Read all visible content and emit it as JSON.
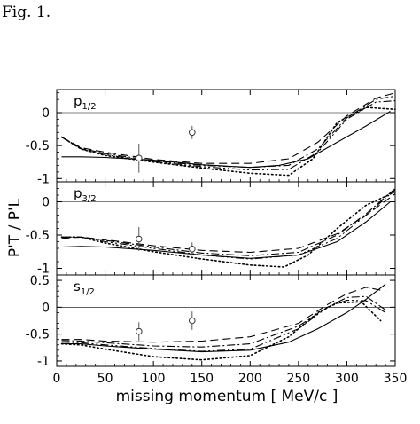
{
  "figure_label": "Fig. 1.",
  "chart_data": {
    "type": "line",
    "xlabel": "missing momentum [ MeV/c ]",
    "ylabel": "P'T / P'L",
    "xlim": [
      0,
      350
    ],
    "x_ticks": [
      0,
      50,
      100,
      150,
      200,
      250,
      300,
      350
    ],
    "panels": [
      {
        "name": "p1/2",
        "label_main": "p",
        "label_sub": "1/2",
        "ylim": [
          -1.05,
          0.35
        ],
        "y_ticks": [
          {
            "v": 0,
            "t": "0"
          },
          {
            "v": -0.5,
            "t": "-0.5"
          },
          {
            "v": -1,
            "t": "-1"
          }
        ],
        "series": [
          {
            "style": "solid",
            "x": [
              5,
              25,
              50,
              100,
              150,
              200,
              230,
              260,
              290,
              320,
              345
            ],
            "y": [
              -0.67,
              -0.67,
              -0.68,
              -0.72,
              -0.79,
              -0.83,
              -0.8,
              -0.7,
              -0.45,
              -0.2,
              0.02
            ]
          },
          {
            "style": "dashed",
            "x": [
              5,
              25,
              50,
              100,
              150,
              200,
              240,
              270,
              300,
              330,
              350
            ],
            "y": [
              -0.37,
              -0.53,
              -0.6,
              -0.71,
              -0.77,
              -0.77,
              -0.7,
              -0.45,
              -0.05,
              0.22,
              0.3
            ]
          },
          {
            "style": "dashdot",
            "x": [
              5,
              25,
              50,
              100,
              150,
              200,
              240,
              270,
              300,
              330,
              350
            ],
            "y": [
              -0.37,
              -0.54,
              -0.62,
              -0.73,
              -0.8,
              -0.83,
              -0.8,
              -0.55,
              -0.08,
              0.2,
              0.25
            ]
          },
          {
            "style": "dashdotdot",
            "x": [
              5,
              25,
              50,
              100,
              150,
              200,
              240,
              270,
              300,
              330,
              350
            ],
            "y": [
              -0.37,
              -0.55,
              -0.64,
              -0.74,
              -0.82,
              -0.87,
              -0.86,
              -0.6,
              -0.1,
              0.16,
              0.18
            ]
          },
          {
            "style": "dotted",
            "x": [
              5,
              25,
              50,
              100,
              150,
              200,
              240,
              265,
              290,
              320,
              350
            ],
            "y": [
              -0.37,
              -0.55,
              -0.65,
              -0.75,
              -0.84,
              -0.92,
              -0.95,
              -0.7,
              -0.15,
              0.08,
              0.05
            ]
          }
        ],
        "points": [
          {
            "x": 85,
            "y": -0.69,
            "err": 0.22
          },
          {
            "x": 140,
            "y": -0.3,
            "err": 0.1
          }
        ]
      },
      {
        "name": "p3/2",
        "label_main": "p",
        "label_sub": "3/2",
        "ylim": [
          -1.1,
          0.3
        ],
        "y_ticks": [
          {
            "v": 0,
            "t": "0"
          },
          {
            "v": -0.5,
            "t": "-0.5"
          },
          {
            "v": -1,
            "t": "-1"
          }
        ],
        "series": [
          {
            "style": "solid",
            "x": [
              5,
              25,
              50,
              100,
              150,
              200,
              250,
              290,
              320,
              345
            ],
            "y": [
              -0.68,
              -0.67,
              -0.68,
              -0.73,
              -0.8,
              -0.85,
              -0.8,
              -0.6,
              -0.3,
              0.0
            ]
          },
          {
            "style": "dashed",
            "x": [
              5,
              25,
              50,
              100,
              150,
              200,
              250,
              290,
              320,
              350
            ],
            "y": [
              -0.55,
              -0.53,
              -0.57,
              -0.66,
              -0.73,
              -0.76,
              -0.7,
              -0.48,
              -0.2,
              0.12
            ]
          },
          {
            "style": "dashdot",
            "x": [
              5,
              25,
              50,
              100,
              150,
              200,
              250,
              290,
              320,
              350
            ],
            "y": [
              -0.53,
              -0.53,
              -0.58,
              -0.68,
              -0.77,
              -0.81,
              -0.76,
              -0.5,
              -0.18,
              0.2
            ]
          },
          {
            "style": "dashdotdot",
            "x": [
              5,
              25,
              50,
              100,
              150,
              200,
              250,
              290,
              320,
              350
            ],
            "y": [
              -0.53,
              -0.53,
              -0.6,
              -0.7,
              -0.8,
              -0.86,
              -0.8,
              -0.55,
              -0.2,
              0.18
            ]
          },
          {
            "style": "dotted",
            "x": [
              5,
              25,
              50,
              100,
              150,
              200,
              235,
              260,
              290,
              320,
              350
            ],
            "y": [
              -0.53,
              -0.53,
              -0.62,
              -0.75,
              -0.86,
              -0.95,
              -0.98,
              -0.8,
              -0.4,
              -0.05,
              0.15
            ]
          }
        ],
        "points": [
          {
            "x": 85,
            "y": -0.56,
            "err": 0.18
          },
          {
            "x": 140,
            "y": -0.71,
            "err": 0.1
          }
        ]
      },
      {
        "name": "s1/2",
        "label_main": "s",
        "label_sub": "1/2",
        "ylim": [
          -1.1,
          0.6
        ],
        "y_ticks": [
          {
            "v": 0.5,
            "t": "0.5"
          },
          {
            "v": 0,
            "t": "0"
          },
          {
            "v": -0.5,
            "t": "-0.5"
          },
          {
            "v": -1,
            "t": "-1"
          }
        ],
        "series": [
          {
            "style": "solid",
            "x": [
              5,
              25,
              50,
              100,
              150,
              200,
              240,
              270,
              300,
              320,
              340
            ],
            "y": [
              -0.68,
              -0.68,
              -0.72,
              -0.78,
              -0.83,
              -0.8,
              -0.65,
              -0.4,
              -0.1,
              0.15,
              0.43
            ]
          },
          {
            "style": "dashed",
            "x": [
              5,
              25,
              50,
              100,
              150,
              200,
              250,
              280,
              300,
              320,
              340
            ],
            "y": [
              -0.6,
              -0.6,
              -0.63,
              -0.65,
              -0.63,
              -0.55,
              -0.3,
              0.05,
              0.25,
              0.37,
              0.3
            ]
          },
          {
            "style": "dashdot",
            "x": [
              5,
              25,
              50,
              100,
              150,
              200,
              250,
              280,
              300,
              320,
              340
            ],
            "y": [
              -0.62,
              -0.63,
              -0.66,
              -0.72,
              -0.74,
              -0.68,
              -0.35,
              0.0,
              0.18,
              0.2,
              -0.05
            ]
          },
          {
            "style": "dashdotdot",
            "x": [
              5,
              25,
              50,
              100,
              150,
              200,
              250,
              280,
              300,
              320,
              340
            ],
            "y": [
              -0.65,
              -0.66,
              -0.7,
              -0.77,
              -0.82,
              -0.78,
              -0.4,
              0.0,
              0.13,
              0.12,
              -0.1
            ]
          },
          {
            "style": "dotted",
            "x": [
              5,
              25,
              50,
              100,
              150,
              200,
              240,
              270,
              290,
              315,
              335
            ],
            "y": [
              -0.68,
              -0.7,
              -0.78,
              -0.92,
              -0.98,
              -0.9,
              -0.55,
              -0.1,
              0.08,
              0.1,
              -0.25
            ]
          }
        ],
        "points": [
          {
            "x": 85,
            "y": -0.45,
            "err": 0.17
          },
          {
            "x": 140,
            "y": -0.25,
            "err": 0.17
          }
        ]
      }
    ]
  }
}
